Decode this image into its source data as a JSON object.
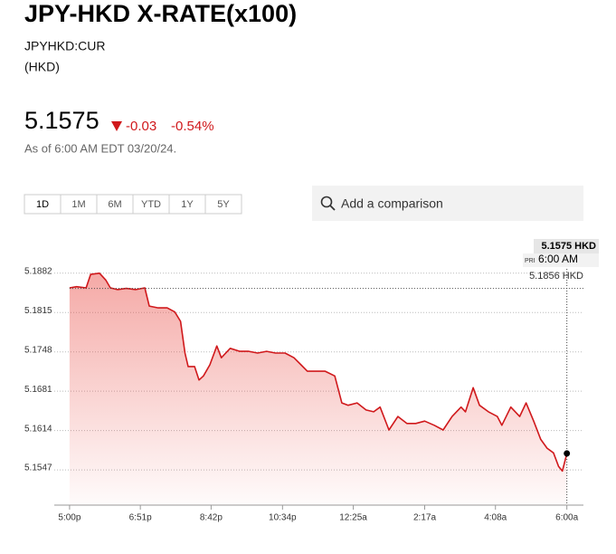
{
  "header": {
    "title": "JPY-HKD X-RATE(x100)",
    "ticker": "JPYHKD:CUR",
    "currency": "(HKD)",
    "price": "5.1575",
    "change": "-0.03",
    "change_pct": "-0.54%",
    "as_of": "As of 6:00 AM EDT 03/20/24."
  },
  "tabs": [
    "1D",
    "1M",
    "6M",
    "YTD",
    "1Y",
    "5Y"
  ],
  "search": {
    "placeholder": "Add a comparison"
  },
  "chart_data": {
    "type": "line",
    "color": "#d0191c",
    "x": [
      0,
      11,
      26,
      33,
      47,
      57,
      64,
      75,
      89,
      104,
      118,
      125,
      139,
      153,
      165,
      174,
      181,
      186,
      196,
      203,
      210,
      220,
      231,
      238,
      252,
      267,
      281,
      295,
      309,
      323,
      338,
      352,
      363,
      373,
      387,
      401,
      416,
      427,
      437,
      451,
      465,
      477,
      487,
      501,
      515,
      529,
      543,
      557,
      572,
      586,
      600,
      614,
      621,
      633,
      643,
      657,
      671,
      678,
      692,
      706,
      716,
      728,
      739,
      749,
      759,
      767,
      773,
      780
    ],
    "values": [
      5.1857,
      5.1859,
      5.1857,
      5.188,
      5.1882,
      5.187,
      5.1857,
      5.1854,
      5.1856,
      5.1854,
      5.1857,
      5.1826,
      5.1823,
      5.1823,
      5.1816,
      5.18,
      5.1746,
      5.1723,
      5.1723,
      5.17,
      5.1707,
      5.1726,
      5.1758,
      5.1738,
      5.1754,
      5.1749,
      5.1749,
      5.1746,
      5.1749,
      5.1746,
      5.1746,
      5.1738,
      5.1726,
      5.1715,
      5.1715,
      5.1715,
      5.1707,
      5.1661,
      5.1657,
      5.1661,
      5.1649,
      5.1646,
      5.1654,
      5.1615,
      5.1638,
      5.1626,
      5.1626,
      5.163,
      5.1623,
      5.1615,
      5.1638,
      5.1654,
      5.1646,
      5.1687,
      5.1657,
      5.1646,
      5.1638,
      5.1623,
      5.1654,
      5.1638,
      5.1661,
      5.163,
      5.1599,
      5.1584,
      5.1576,
      5.1553,
      5.1545,
      5.1575
    ],
    "xlim": [
      -24,
      806
    ],
    "ylim": [
      5.1487,
      5.1931
    ],
    "xticks": [
      {
        "value": 0,
        "label": "5:00p"
      },
      {
        "value": 111,
        "label": "6:51p"
      },
      {
        "value": 222,
        "label": "8:42p"
      },
      {
        "value": 334,
        "label": "10:34p"
      },
      {
        "value": 445,
        "label": "12:25a"
      },
      {
        "value": 557,
        "label": "2:17a"
      },
      {
        "value": 668,
        "label": "4:08a"
      },
      {
        "value": 780,
        "label": "6:00a"
      }
    ],
    "yticks": [
      5.1547,
      5.1614,
      5.1681,
      5.1748,
      5.1815,
      5.1882
    ],
    "grid": true,
    "previous_close": 5.1856,
    "previous_close_label": "5.1856 HKD",
    "last_label": "5.1575 HKD",
    "last_prefix": "PRI",
    "last_time": "6:00 AM"
  }
}
